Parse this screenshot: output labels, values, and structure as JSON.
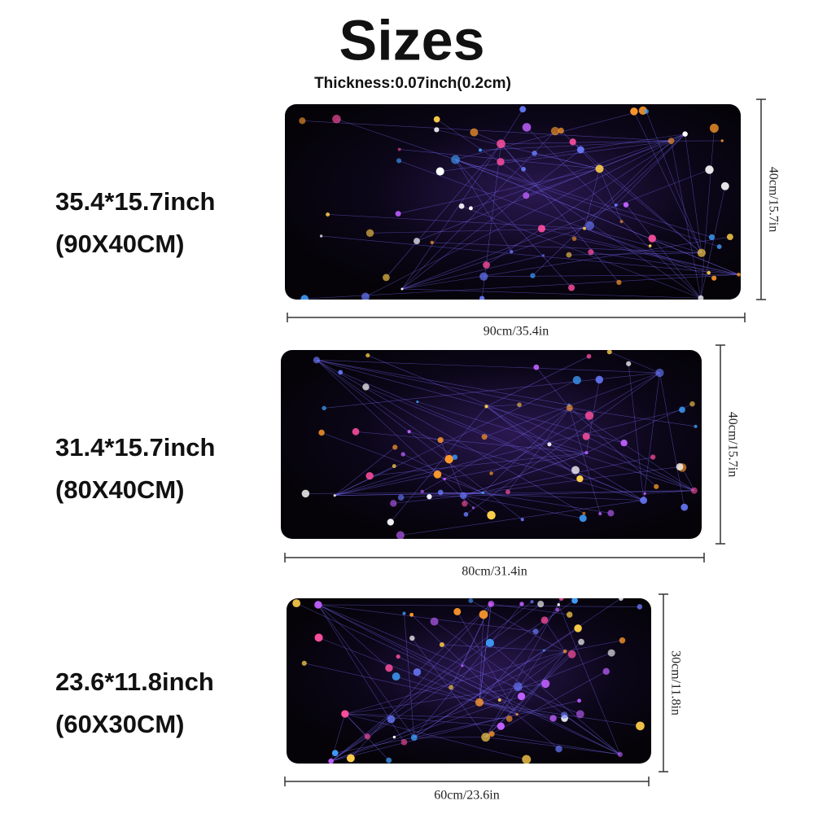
{
  "header": {
    "title": "Sizes",
    "subtitle": "Thickness:0.07inch(0.2cm)"
  },
  "sizes": [
    {
      "label_inch": "35.4*15.7inch",
      "label_cm": "(90X40CM)",
      "width_label": "90cm/35.4in",
      "height_label": "40cm/15.7in"
    },
    {
      "label_inch": "31.4*15.7inch",
      "label_cm": "(80X40CM)",
      "width_label": "80cm/31.4in",
      "height_label": "40cm/15.7in"
    },
    {
      "label_inch": "23.6*11.8inch",
      "label_cm": "(60X30CM)",
      "width_label": "60cm/23.6in",
      "height_label": "30cm/11.8in"
    }
  ]
}
